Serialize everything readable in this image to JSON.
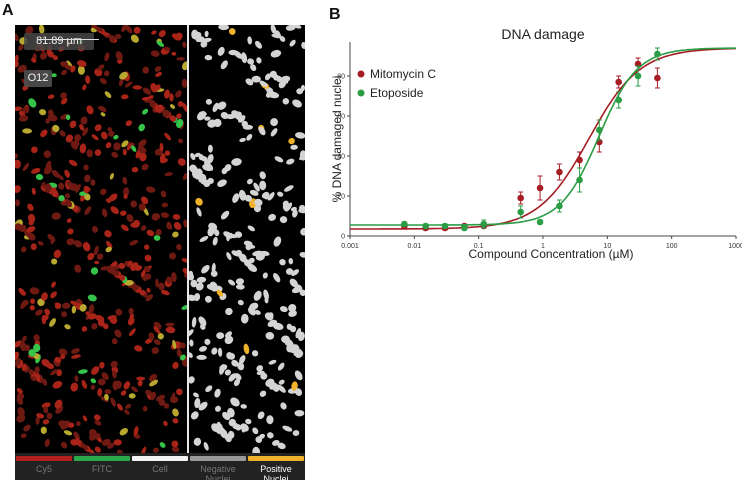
{
  "panel_labels": {
    "a": "A",
    "b": "B"
  },
  "microscopy": {
    "scale_text": "81.89 µm",
    "well": "O12",
    "channels": [
      {
        "label": "Cy5",
        "color": "#b3201f",
        "active": false
      },
      {
        "label": "FITC",
        "color": "#2aa84a",
        "active": false
      },
      {
        "label": "Cell",
        "color": "#f2f2f2",
        "active": false
      },
      {
        "label": "Negative Nuclei",
        "color": "#9a9a9a",
        "active": false
      },
      {
        "label": "Positive Nuclei",
        "color": "#f0b22a",
        "active": true
      }
    ]
  },
  "chart_data": {
    "type": "scatter",
    "title": "DNA damage",
    "xlabel": "Compound Concentration (µM)",
    "ylabel": "% DNA damaged nuclei",
    "x_scale": "log",
    "xlim": [
      0.001,
      1000
    ],
    "ylim": [
      0,
      95
    ],
    "x_ticks": [
      "0.001",
      "0.01",
      "0.1",
      "1",
      "10",
      "100",
      "1000"
    ],
    "y_ticks": [
      "0",
      "20",
      "40",
      "60",
      "80"
    ],
    "grid": false,
    "legend_position": "top-left",
    "series": [
      {
        "name": "Mitomycin C",
        "color": "#a61d24",
        "x": [
          0.007,
          0.015,
          0.03,
          0.06,
          0.12,
          0.45,
          0.9,
          1.8,
          3.7,
          7.5,
          15,
          30,
          60
        ],
        "y": [
          5,
          4,
          4,
          5,
          5,
          19,
          24,
          32,
          38,
          47,
          77,
          86,
          79
        ],
        "err": [
          1,
          1,
          1,
          1,
          1,
          3,
          6,
          4,
          4,
          5,
          3,
          3,
          5
        ],
        "fit": {
          "bottom": 3.5,
          "top": 94,
          "ec50": 5.2,
          "hill": 1.1
        }
      },
      {
        "name": "Etoposide",
        "color": "#2a9d45",
        "x": [
          0.007,
          0.015,
          0.03,
          0.06,
          0.12,
          0.45,
          0.9,
          1.8,
          3.7,
          7.5,
          15,
          30,
          60
        ],
        "y": [
          6,
          5,
          5,
          4,
          6,
          12,
          7,
          15,
          28,
          53,
          68,
          80,
          91
        ],
        "err": [
          1,
          1,
          1,
          1,
          2,
          3,
          1,
          3,
          6,
          5,
          4,
          5,
          3
        ],
        "fit": {
          "bottom": 5.5,
          "top": 94,
          "ec50": 7.4,
          "hill": 1.45
        }
      }
    ]
  }
}
